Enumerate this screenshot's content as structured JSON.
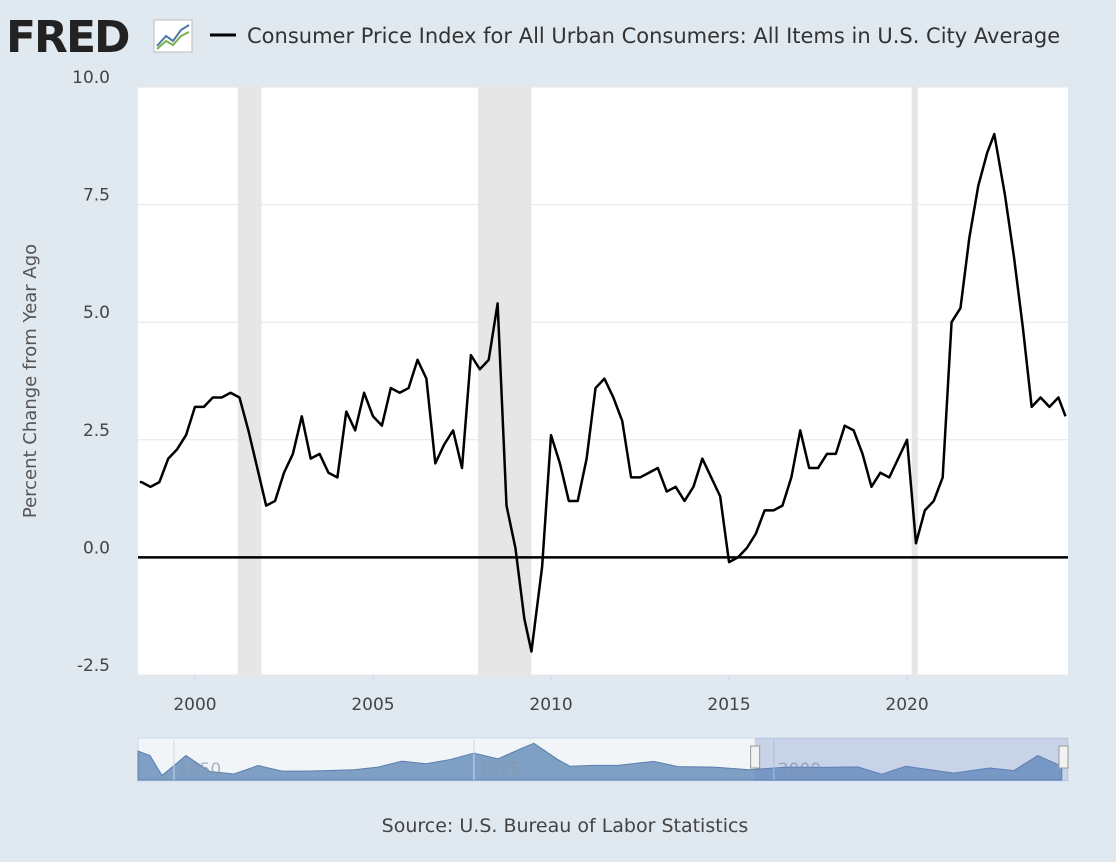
{
  "chart_data": {
    "type": "line",
    "logo": "FRED",
    "series": [
      {
        "name": "Consumer Price Index for All Urban Consumers: All Items in U.S. City Average",
        "color": "#000000",
        "values": [
          1.6,
          1.6,
          1.5,
          1.6,
          2.1,
          2.3,
          2.6,
          3.2,
          3.2,
          3.4,
          3.4,
          3.5,
          3.4,
          2.7,
          1.9,
          1.1,
          1.2,
          1.8,
          2.2,
          3.0,
          2.1,
          2.2,
          1.8,
          1.7,
          3.1,
          2.7,
          3.5,
          3.0,
          2.8,
          3.6,
          3.5,
          3.6,
          4.2,
          3.8,
          2.0,
          2.4,
          2.7,
          1.9,
          4.3,
          4.0,
          4.2,
          5.4,
          1.1,
          0.2,
          -1.3,
          -2.0,
          -0.2,
          2.6,
          2.0,
          1.2,
          1.2,
          2.1,
          3.6,
          3.8,
          3.4,
          2.9,
          1.7,
          1.7,
          1.8,
          1.9,
          1.4,
          1.5,
          1.2,
          1.5,
          2.1,
          1.7,
          1.3,
          -0.1,
          0.0,
          0.2,
          0.5,
          1.0,
          1.0,
          1.1,
          1.7,
          2.7,
          1.9,
          1.9,
          2.2,
          2.2,
          2.8,
          2.7,
          2.2,
          1.5,
          1.8,
          1.7,
          2.1,
          2.5,
          0.3,
          1.0,
          1.2,
          1.7,
          5.0,
          5.3,
          6.8,
          7.9,
          8.6,
          9.0,
          7.7,
          6.4,
          4.9,
          3.2,
          3.4,
          3.2,
          3.4,
          3.0
        ]
      }
    ],
    "x": [
      1998.45,
      1998.5,
      1998.75,
      1999.0,
      1999.25,
      1999.5,
      1999.75,
      2000.0,
      2000.25,
      2000.5,
      2000.75,
      2001.0,
      2001.25,
      2001.5,
      2001.75,
      2002.0,
      2002.25,
      2002.5,
      2002.75,
      2003.0,
      2003.25,
      2003.5,
      2003.75,
      2004.0,
      2004.25,
      2004.5,
      2004.75,
      2005.0,
      2005.25,
      2005.5,
      2005.75,
      2006.0,
      2006.25,
      2006.5,
      2006.75,
      2007.0,
      2007.25,
      2007.5,
      2007.75,
      2008.0,
      2008.25,
      2008.5,
      2008.75,
      2009.0,
      2009.25,
      2009.45,
      2009.75,
      2010.0,
      2010.25,
      2010.5,
      2010.75,
      2011.0,
      2011.25,
      2011.5,
      2011.75,
      2012.0,
      2012.25,
      2012.5,
      2012.75,
      2013.0,
      2013.25,
      2013.5,
      2013.75,
      2014.0,
      2014.25,
      2014.5,
      2014.75,
      2015.0,
      2015.25,
      2015.5,
      2015.75,
      2016.0,
      2016.25,
      2016.5,
      2016.75,
      2017.0,
      2017.25,
      2017.5,
      2017.75,
      2018.0,
      2018.25,
      2018.5,
      2018.75,
      2019.0,
      2019.25,
      2019.5,
      2019.75,
      2020.0,
      2020.25,
      2020.5,
      2020.75,
      2021.0,
      2021.25,
      2021.5,
      2021.75,
      2022.0,
      2022.25,
      2022.45,
      2022.75,
      2023.0,
      2023.25,
      2023.5,
      2023.75,
      2024.0,
      2024.25,
      2024.45
    ],
    "xlim": [
      1998.4,
      2024.52
    ],
    "xticks": [
      2000,
      2005,
      2010,
      2015,
      2020
    ],
    "ylim": [
      -2.5,
      10
    ],
    "yticks": [
      {
        "value": 10,
        "label": "10.0"
      },
      7.5,
      {
        "value": 5,
        "label": "5.0"
      },
      2.5,
      {
        "value": 0,
        "label": "0.0"
      },
      -2.5
    ],
    "y_label": "Percent Change from Year Ago",
    "recessions": [
      [
        2001.2,
        2001.87
      ],
      [
        2007.95,
        2009.45
      ],
      [
        2020.13,
        2020.3
      ]
    ],
    "grid": true,
    "navigator": {
      "x": [
        1947,
        1948,
        1949,
        1951,
        1953,
        1955,
        1957,
        1959,
        1961,
        1963,
        1965,
        1967,
        1969,
        1971,
        1973,
        1975,
        1977,
        1979,
        1980,
        1982,
        1983,
        1985,
        1987,
        1990,
        1992,
        1995,
        1998,
        2001,
        2004,
        2007,
        2009,
        2011,
        2015,
        2018,
        2020,
        2022,
        2024
      ],
      "values": [
        10,
        8,
        -1,
        8,
        0.8,
        -0.3,
        3.5,
        1,
        1,
        1.3,
        1.6,
        2.8,
        5.5,
        4.3,
        6.2,
        9.1,
        6.5,
        11.3,
        13.5,
        6.2,
        3.2,
        3.6,
        3.6,
        5.4,
        3,
        2.8,
        1.6,
        2.8,
        2.7,
        2.9,
        -0.4,
        3.2,
        0.1,
        2.4,
        1.2,
        8,
        3.2
      ],
      "xlim": [
        1947,
        2024.52
      ],
      "ylim": [
        -3,
        15
      ],
      "xticks": [
        1950,
        1975,
        2000
      ]
    },
    "source": "Source: U.S. Bureau of Labor Statistics"
  }
}
